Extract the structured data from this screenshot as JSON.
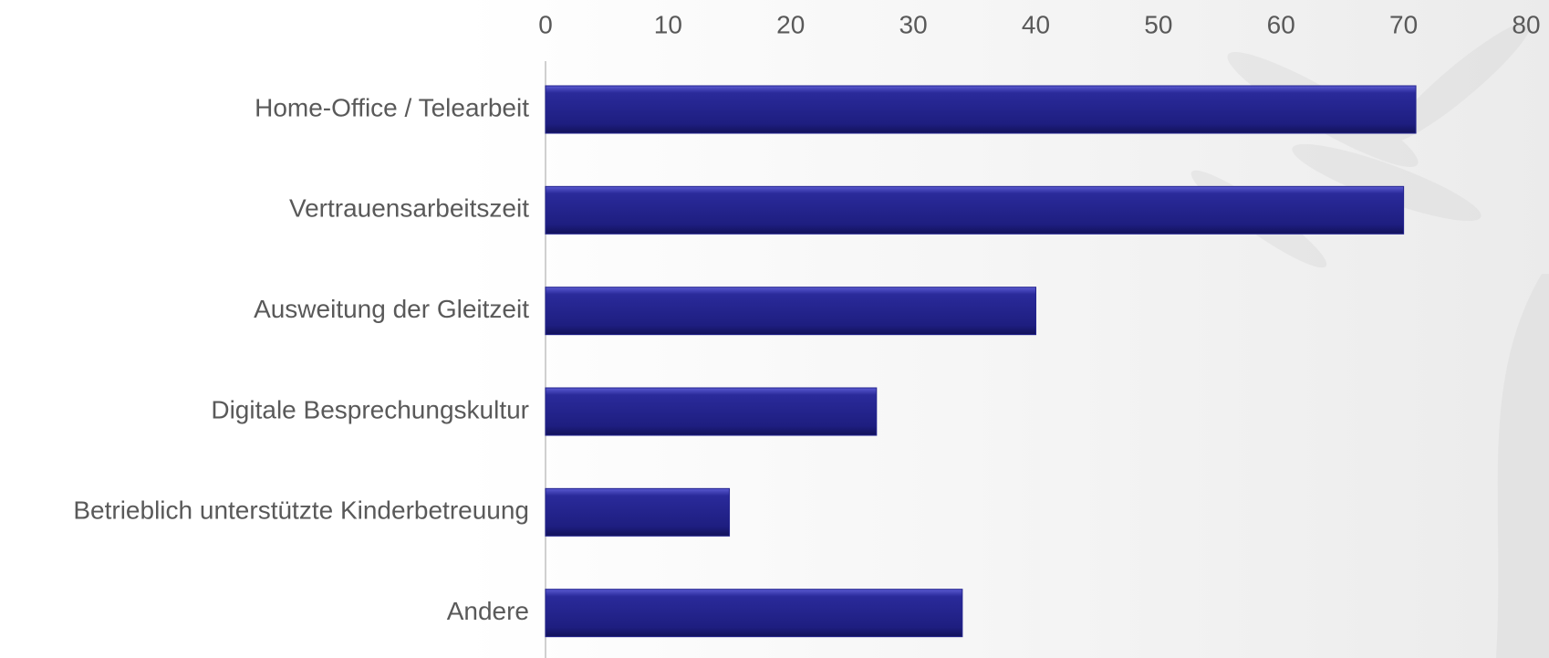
{
  "chart_data": {
    "type": "bar",
    "orientation": "horizontal",
    "categories": [
      "Home-Office / Telearbeit",
      "Vertrauensarbeitszeit",
      "Ausweitung der Gleitzeit",
      "Digitale Besprechungskultur",
      "Betrieblich unterstützte Kinderbetreuung",
      "Andere"
    ],
    "values": [
      71,
      70,
      40,
      27,
      15,
      34
    ],
    "color": "#24248f",
    "xlim": [
      0,
      80
    ],
    "xticks": [
      0,
      10,
      20,
      30,
      40,
      50,
      60,
      70,
      80
    ],
    "grid": false
  }
}
